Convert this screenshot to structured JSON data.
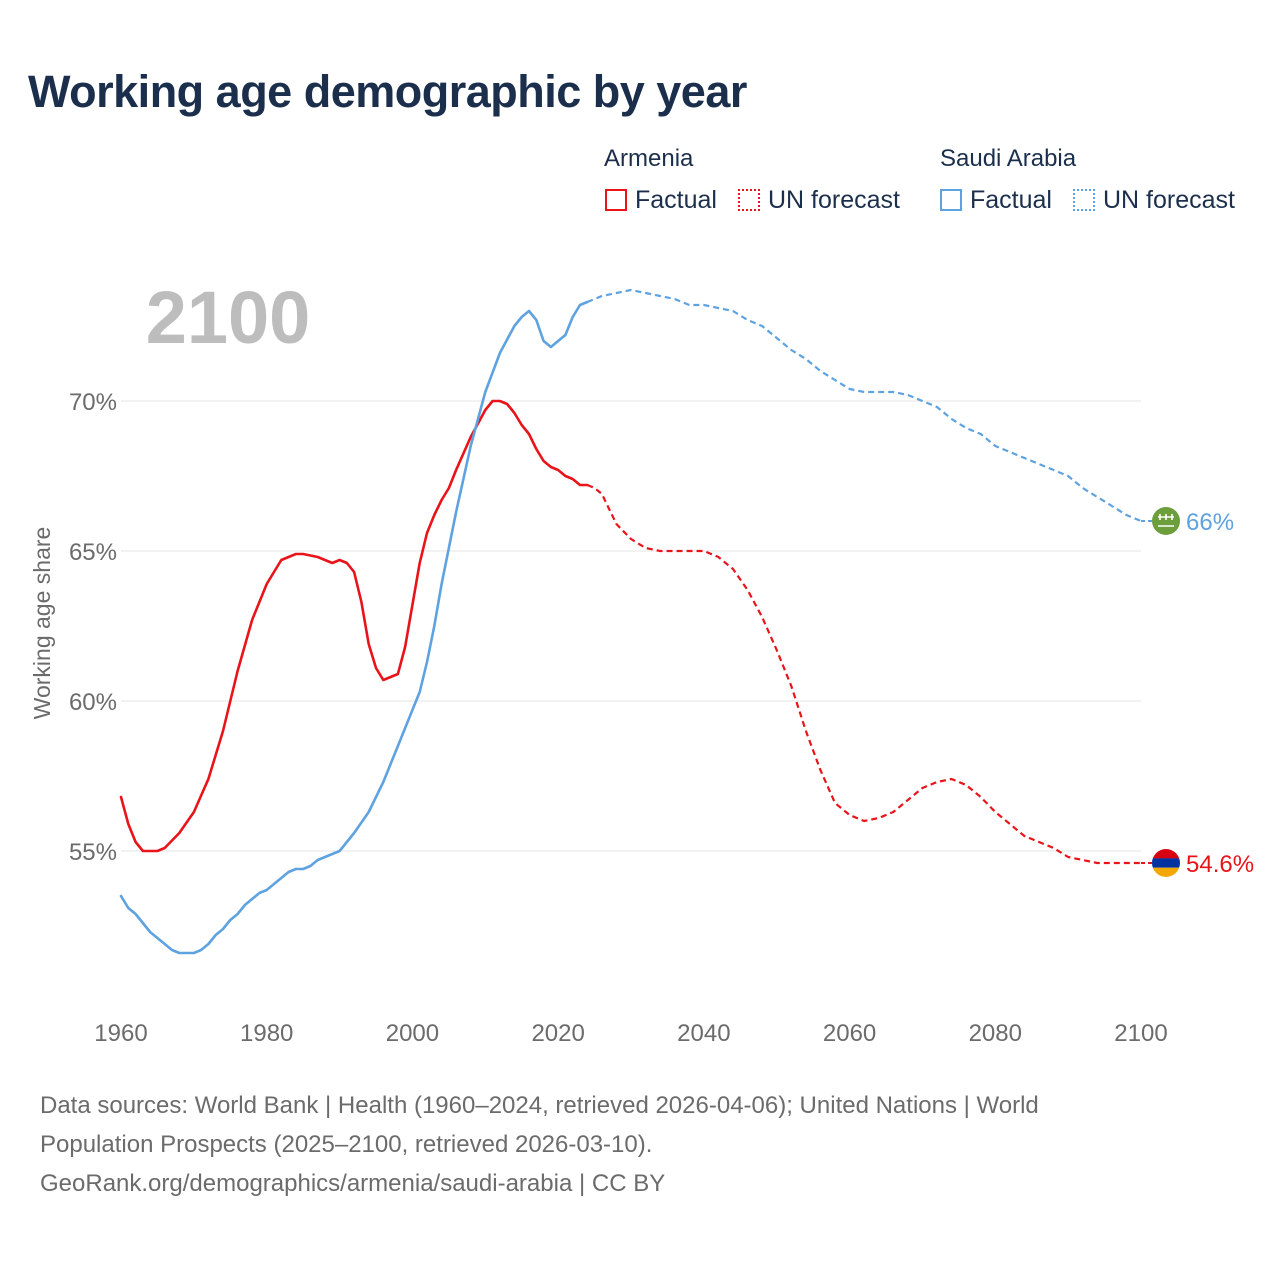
{
  "title": "Working age demographic by year",
  "legend": {
    "armenia_label": "Armenia",
    "saudi_label": "Saudi Arabia",
    "factual_label": "Factual",
    "forecast_label": "UN forecast"
  },
  "colors": {
    "armenia": "#e8141a",
    "saudi": "#5ea2e0",
    "grid": "#e6e6e6",
    "axis_text": "#6b6b6b"
  },
  "footer": {
    "line1": "Data sources: World Bank | Health (1960–2024, retrieved 2026-04-06); United Nations | World",
    "line2": "Population Prospects (2025–2100, retrieved 2026-03-10).",
    "line3": "GeoRank.org/demographics/armenia/saudi-arabia | CC BY"
  },
  "chart_data": {
    "type": "line",
    "title": "Working age demographic by year",
    "ylabel": "Working age share",
    "xlabel": "",
    "year_label": "2100",
    "xlim": [
      1960,
      2100
    ],
    "ylim": [
      51,
      75
    ],
    "x_ticks": [
      1960,
      1980,
      2000,
      2020,
      2040,
      2060,
      2080,
      2100
    ],
    "x_tick_labels": [
      "1960",
      "1980",
      "2000",
      "2020",
      "2040",
      "2060",
      "2080",
      "2100"
    ],
    "y_ticks": [
      55,
      60,
      65,
      70
    ],
    "y_tick_labels": [
      "55%",
      "60%",
      "65%",
      "70%"
    ],
    "grid": true,
    "factual_end_year": 2024,
    "series": [
      {
        "name": "Armenia",
        "color": "#e8141a",
        "end_label": "54.6%",
        "end_marker": "armenia-flag",
        "points": [
          [
            1960,
            56.8
          ],
          [
            1961,
            55.9
          ],
          [
            1962,
            55.3
          ],
          [
            1963,
            55.0
          ],
          [
            1965,
            55.0
          ],
          [
            1966,
            55.1
          ],
          [
            1968,
            55.6
          ],
          [
            1970,
            56.3
          ],
          [
            1972,
            57.4
          ],
          [
            1974,
            59.0
          ],
          [
            1976,
            61.0
          ],
          [
            1978,
            62.7
          ],
          [
            1980,
            63.9
          ],
          [
            1982,
            64.7
          ],
          [
            1984,
            64.9
          ],
          [
            1985,
            64.9
          ],
          [
            1987,
            64.8
          ],
          [
            1989,
            64.6
          ],
          [
            1990,
            64.7
          ],
          [
            1991,
            64.6
          ],
          [
            1992,
            64.3
          ],
          [
            1993,
            63.3
          ],
          [
            1994,
            61.9
          ],
          [
            1995,
            61.1
          ],
          [
            1996,
            60.7
          ],
          [
            1998,
            60.9
          ],
          [
            1999,
            61.8
          ],
          [
            2000,
            63.2
          ],
          [
            2001,
            64.6
          ],
          [
            2002,
            65.6
          ],
          [
            2003,
            66.2
          ],
          [
            2004,
            66.7
          ],
          [
            2005,
            67.1
          ],
          [
            2006,
            67.7
          ],
          [
            2008,
            68.8
          ],
          [
            2010,
            69.7
          ],
          [
            2011,
            70.0
          ],
          [
            2012,
            70.0
          ],
          [
            2013,
            69.9
          ],
          [
            2014,
            69.6
          ],
          [
            2015,
            69.2
          ],
          [
            2016,
            68.9
          ],
          [
            2017,
            68.4
          ],
          [
            2018,
            68.0
          ],
          [
            2019,
            67.8
          ],
          [
            2020,
            67.7
          ],
          [
            2021,
            67.5
          ],
          [
            2022,
            67.4
          ],
          [
            2023,
            67.2
          ],
          [
            2024,
            67.2
          ],
          [
            2025,
            67.1
          ],
          [
            2026,
            66.9
          ],
          [
            2027,
            66.4
          ],
          [
            2028,
            65.9
          ],
          [
            2030,
            65.4
          ],
          [
            2032,
            65.1
          ],
          [
            2034,
            65.0
          ],
          [
            2040,
            65.0
          ],
          [
            2042,
            64.8
          ],
          [
            2044,
            64.4
          ],
          [
            2046,
            63.7
          ],
          [
            2048,
            62.8
          ],
          [
            2050,
            61.7
          ],
          [
            2052,
            60.5
          ],
          [
            2054,
            59.0
          ],
          [
            2056,
            57.7
          ],
          [
            2058,
            56.6
          ],
          [
            2060,
            56.2
          ],
          [
            2062,
            56.0
          ],
          [
            2064,
            56.1
          ],
          [
            2066,
            56.3
          ],
          [
            2068,
            56.7
          ],
          [
            2070,
            57.1
          ],
          [
            2072,
            57.3
          ],
          [
            2074,
            57.4
          ],
          [
            2076,
            57.2
          ],
          [
            2078,
            56.8
          ],
          [
            2080,
            56.3
          ],
          [
            2082,
            55.9
          ],
          [
            2084,
            55.5
          ],
          [
            2086,
            55.3
          ],
          [
            2088,
            55.1
          ],
          [
            2090,
            54.8
          ],
          [
            2092,
            54.7
          ],
          [
            2094,
            54.6
          ],
          [
            2098,
            54.6
          ],
          [
            2100,
            54.6
          ]
        ]
      },
      {
        "name": "Saudi Arabia",
        "color": "#5ea2e0",
        "end_label": "66%",
        "end_marker": "saudi-flag",
        "points": [
          [
            1960,
            53.5
          ],
          [
            1961,
            53.1
          ],
          [
            1962,
            52.9
          ],
          [
            1964,
            52.3
          ],
          [
            1966,
            51.9
          ],
          [
            1967,
            51.7
          ],
          [
            1968,
            51.6
          ],
          [
            1970,
            51.6
          ],
          [
            1971,
            51.7
          ],
          [
            1972,
            51.9
          ],
          [
            1973,
            52.2
          ],
          [
            1974,
            52.4
          ],
          [
            1975,
            52.7
          ],
          [
            1976,
            52.9
          ],
          [
            1977,
            53.2
          ],
          [
            1978,
            53.4
          ],
          [
            1979,
            53.6
          ],
          [
            1980,
            53.7
          ],
          [
            1982,
            54.1
          ],
          [
            1983,
            54.3
          ],
          [
            1984,
            54.4
          ],
          [
            1985,
            54.4
          ],
          [
            1986,
            54.5
          ],
          [
            1987,
            54.7
          ],
          [
            1988,
            54.8
          ],
          [
            1990,
            55.0
          ],
          [
            1992,
            55.6
          ],
          [
            1994,
            56.3
          ],
          [
            1996,
            57.3
          ],
          [
            1998,
            58.5
          ],
          [
            2000,
            59.7
          ],
          [
            2001,
            60.3
          ],
          [
            2002,
            61.3
          ],
          [
            2003,
            62.5
          ],
          [
            2004,
            63.9
          ],
          [
            2006,
            66.3
          ],
          [
            2008,
            68.5
          ],
          [
            2010,
            70.3
          ],
          [
            2012,
            71.6
          ],
          [
            2014,
            72.5
          ],
          [
            2015,
            72.8
          ],
          [
            2016,
            73.0
          ],
          [
            2017,
            72.7
          ],
          [
            2018,
            72.0
          ],
          [
            2019,
            71.8
          ],
          [
            2020,
            72.0
          ],
          [
            2021,
            72.2
          ],
          [
            2022,
            72.8
          ],
          [
            2023,
            73.2
          ],
          [
            2024,
            73.3
          ],
          [
            2026,
            73.5
          ],
          [
            2028,
            73.6
          ],
          [
            2030,
            73.7
          ],
          [
            2032,
            73.6
          ],
          [
            2034,
            73.5
          ],
          [
            2036,
            73.4
          ],
          [
            2038,
            73.2
          ],
          [
            2040,
            73.2
          ],
          [
            2042,
            73.1
          ],
          [
            2044,
            73.0
          ],
          [
            2046,
            72.7
          ],
          [
            2048,
            72.5
          ],
          [
            2050,
            72.1
          ],
          [
            2052,
            71.7
          ],
          [
            2054,
            71.4
          ],
          [
            2056,
            71.0
          ],
          [
            2058,
            70.7
          ],
          [
            2060,
            70.4
          ],
          [
            2062,
            70.3
          ],
          [
            2064,
            70.3
          ],
          [
            2066,
            70.3
          ],
          [
            2068,
            70.2
          ],
          [
            2070,
            70.0
          ],
          [
            2072,
            69.8
          ],
          [
            2074,
            69.4
          ],
          [
            2076,
            69.1
          ],
          [
            2078,
            68.9
          ],
          [
            2080,
            68.5
          ],
          [
            2082,
            68.3
          ],
          [
            2084,
            68.1
          ],
          [
            2086,
            67.9
          ],
          [
            2088,
            67.7
          ],
          [
            2090,
            67.5
          ],
          [
            2092,
            67.1
          ],
          [
            2094,
            66.8
          ],
          [
            2096,
            66.5
          ],
          [
            2098,
            66.2
          ],
          [
            2100,
            66.0
          ]
        ]
      }
    ]
  }
}
